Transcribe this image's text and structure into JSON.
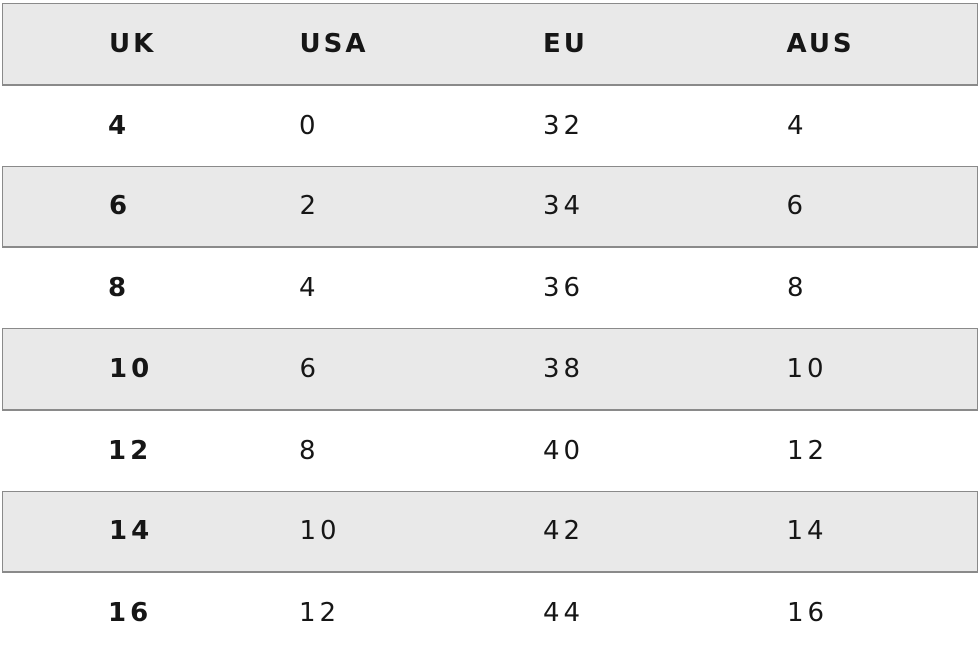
{
  "chart_data": {
    "type": "table",
    "columns": [
      "UK",
      "USA",
      "EU",
      "AUS"
    ],
    "rows": [
      [
        "4",
        "0",
        "32",
        "4"
      ],
      [
        "6",
        "2",
        "34",
        "6"
      ],
      [
        "8",
        "4",
        "36",
        "8"
      ],
      [
        "10",
        "6",
        "38",
        "10"
      ],
      [
        "12",
        "8",
        "40",
        "12"
      ],
      [
        "14",
        "10",
        "42",
        "14"
      ],
      [
        "16",
        "12",
        "44",
        "16"
      ]
    ],
    "shaded_row_indexes": [
      1,
      3,
      5
    ],
    "layout": {
      "header_shaded": true,
      "grid": "horizontal-bands-only",
      "column_alignment": "left"
    }
  },
  "colors": {
    "background": "#ffffff",
    "band_background": "#e9e9e9",
    "band_border": "#8a8a8a",
    "text_color": "#161616"
  }
}
